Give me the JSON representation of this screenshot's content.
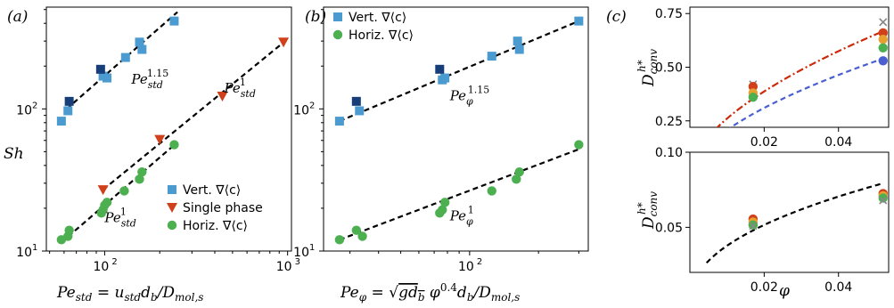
{
  "colors": {
    "vert": "#4b9bd1",
    "vert_dark": "#183e7a",
    "horiz": "#4caf50",
    "single": "#d0401a",
    "fit_red": "#cc2a0a",
    "fit_blue": "#4a5fd0",
    "fit_black": "#000000"
  },
  "chart_data": [
    {
      "id": "a",
      "type": "scatter",
      "panel_label": "(a)",
      "xlabel": "Pe_std = u_std d_b / D_mol,s",
      "ylabel": "Sh",
      "xscale": "log",
      "yscale": "log",
      "xlim": [
        48,
        1050
      ],
      "ylim": [
        10,
        520
      ],
      "xticks": [
        {
          "v": 100,
          "b": "10",
          "e": "2"
        },
        {
          "v": 1000,
          "b": "10",
          "e": "3"
        }
      ],
      "yticks": [
        {
          "v": 10,
          "b": "10",
          "e": "1"
        },
        {
          "v": 100,
          "b": "10",
          "e": "2"
        }
      ],
      "legend": {
        "position": "lower-right",
        "entries": [
          {
            "label": "Vert. ∇⟨c⟩",
            "marker": "square",
            "color": "vert"
          },
          {
            "label": "Single phase",
            "marker": "triangle-down",
            "color": "single"
          },
          {
            "label": "Horiz. ∇⟨c⟩",
            "marker": "circle",
            "color": "horiz"
          }
        ]
      },
      "series": [
        {
          "name": "Vert. ∇⟨c⟩",
          "marker": "square",
          "color": "vert",
          "x": [
            58,
            63,
            98,
            103,
            130,
            155,
            160,
            240
          ],
          "y": [
            82,
            97,
            170,
            165,
            230,
            295,
            262,
            415
          ]
        },
        {
          "name": "",
          "marker": "square",
          "color": "vert_dark",
          "x": [
            64,
            95
          ],
          "y": [
            113,
            190
          ]
        },
        {
          "name": "Single phase",
          "marker": "triangle-down",
          "color": "single",
          "x": [
            98,
            200,
            440,
            950
          ],
          "y": [
            27,
            61,
            123,
            295
          ]
        },
        {
          "name": "Horiz. ∇⟨c⟩",
          "marker": "circle",
          "color": "horiz",
          "x": [
            58,
            63,
            64,
            96,
            98,
            100,
            103,
            128,
            155,
            160,
            240
          ],
          "y": [
            12,
            12.7,
            14,
            18.5,
            19.5,
            21,
            22,
            26.5,
            32,
            36,
            56
          ]
        }
      ],
      "fits": [
        {
          "x": [
            62,
            250
          ],
          "y": [
            100,
            480
          ],
          "style": "dashed",
          "color": "fit_black"
        },
        {
          "x": [
            98,
            970
          ],
          "y": [
            27,
            300
          ],
          "style": "dashed",
          "color": "fit_black"
        },
        {
          "x": [
            58,
            245
          ],
          "y": [
            11.5,
            57
          ],
          "style": "dashed",
          "color": "fit_black"
        }
      ],
      "annotations": [
        {
          "base": "Pe",
          "sub": "std",
          "sup": "1.15",
          "x": 140,
          "y": 150
        },
        {
          "base": "Pe",
          "sub": "std",
          "sup": "1",
          "x": 450,
          "y": 130
        },
        {
          "base": "Pe",
          "sub": "std",
          "sup": "1",
          "x": 100,
          "y": 16
        }
      ]
    },
    {
      "id": "b",
      "type": "scatter",
      "panel_label": "(b)",
      "xlabel": "Pe_φ = √(g d_b) φ^0.4 d_b / D_mol,s",
      "ylabel": "",
      "xscale": "log",
      "yscale": "log",
      "xlim": [
        23,
        330
      ],
      "ylim": [
        10,
        520
      ],
      "xticks": [
        {
          "v": 100,
          "b": "10",
          "e": "2"
        }
      ],
      "yticks": [
        {
          "v": 10,
          "b": "10",
          "e": "1"
        },
        {
          "v": 100,
          "b": "10",
          "e": "2"
        }
      ],
      "legend": {
        "position": "upper-left",
        "entries": [
          {
            "label": "Vert. ∇⟨c⟩",
            "marker": "square",
            "color": "vert"
          },
          {
            "label": "Horiz. ∇⟨c⟩",
            "marker": "circle",
            "color": "horiz"
          }
        ]
      },
      "series": [
        {
          "name": "Vert. ∇⟨c⟩",
          "marker": "square",
          "color": "vert",
          "x": [
            27,
            33,
            76,
            78,
            125,
            162,
            165,
            300
          ],
          "y": [
            82,
            97,
            160,
            165,
            235,
            300,
            262,
            415
          ]
        },
        {
          "name": "",
          "marker": "square",
          "color": "vert_dark",
          "x": [
            32,
            74
          ],
          "y": [
            113,
            190
          ]
        },
        {
          "name": "Horiz. ∇⟨c⟩",
          "marker": "circle",
          "color": "horiz",
          "x": [
            27,
            32,
            34,
            74,
            76,
            78,
            125,
            160,
            165,
            300
          ],
          "y": [
            12,
            14,
            12.7,
            18.5,
            19.5,
            22,
            26.5,
            32,
            36,
            56
          ]
        }
      ],
      "fits": [
        {
          "x": [
            27,
            300
          ],
          "y": [
            82,
            415
          ],
          "style": "dashed",
          "color": "fit_black"
        },
        {
          "x": [
            27,
            300
          ],
          "y": [
            12,
            52
          ],
          "style": "dashed",
          "color": "fit_black"
        }
      ],
      "annotations": [
        {
          "base": "Pe",
          "sub": "φ",
          "sup": "1.15",
          "x": 82,
          "y": 115
        },
        {
          "base": "Pe",
          "sub": "φ",
          "sup": "1",
          "x": 82,
          "y": 16.5
        }
      ]
    },
    {
      "id": "c_top",
      "type": "scatter",
      "panel_label": "(c)",
      "xlabel": "",
      "ylabel": "D_conv^h*",
      "xscale": "linear",
      "yscale": "linear",
      "xlim": [
        0.0,
        0.0535
      ],
      "ylim": [
        0.22,
        0.78
      ],
      "xticks": [
        {
          "v": 0.02,
          "t": "0.02"
        },
        {
          "v": 0.04,
          "t": "0.04"
        }
      ],
      "yticks": [
        {
          "v": 0.25,
          "t": "0.25"
        },
        {
          "v": 0.5,
          "t": "0.50"
        },
        {
          "v": 0.75,
          "t": "0.75"
        }
      ],
      "series": [
        {
          "marker": "x",
          "color": "#888888",
          "x": [
            0.017,
            0.052
          ],
          "y": [
            0.42,
            0.71
          ]
        },
        {
          "marker": "circle",
          "color": "#d0401a",
          "x": [
            0.017,
            0.052
          ],
          "y": [
            0.41,
            0.66
          ]
        },
        {
          "marker": "circle",
          "color": "#e8a030",
          "x": [
            0.017,
            0.052
          ],
          "y": [
            0.38,
            0.63
          ]
        },
        {
          "marker": "circle",
          "color": "#4caf50",
          "x": [
            0.017,
            0.052
          ],
          "y": [
            0.36,
            0.59
          ]
        },
        {
          "marker": "circle",
          "color": "#4a5fd0",
          "x": [
            0.052
          ],
          "y": [
            0.53
          ]
        }
      ],
      "fits": [
        {
          "fn": "power",
          "a": 3.6,
          "b": 0.57,
          "x0": 0.0043,
          "x1": 0.052,
          "style": "dashdot",
          "color": "fit_red"
        },
        {
          "fn": "power",
          "a": 3.0,
          "b": 0.58,
          "x0": 0.006,
          "x1": 0.052,
          "style": "dashed",
          "color": "fit_blue"
        }
      ]
    },
    {
      "id": "c_bottom",
      "type": "scatter",
      "panel_label": "",
      "xlabel": "φ",
      "ylabel": "D_conv^h*",
      "xscale": "linear",
      "yscale": "linear",
      "xlim": [
        0.0,
        0.0535
      ],
      "ylim": [
        0.02,
        0.1
      ],
      "xticks": [
        {
          "v": 0.02,
          "t": "0.02"
        },
        {
          "v": 0.04,
          "t": "0.04"
        }
      ],
      "yticks": [
        {
          "v": 0.05,
          "t": "0.05"
        },
        {
          "v": 0.1,
          "t": "0.10"
        }
      ],
      "series": [
        {
          "marker": "circle",
          "color": "#d0401a",
          "x": [
            0.017,
            0.052
          ],
          "y": [
            0.0555,
            0.0725
          ]
        },
        {
          "marker": "circle",
          "color": "#e8a030",
          "x": [
            0.017,
            0.052
          ],
          "y": [
            0.0535,
            0.071
          ]
        },
        {
          "marker": "circle",
          "color": "#4caf50",
          "x": [
            0.017,
            0.052
          ],
          "y": [
            0.0515,
            0.0695
          ]
        },
        {
          "marker": "x",
          "color": "#888888",
          "x": [
            0.017,
            0.052
          ],
          "y": [
            0.051,
            0.068
          ]
        }
      ],
      "fits": [
        {
          "fn": "power",
          "a": 0.3,
          "b": 0.45,
          "x0": 0.0045,
          "x1": 0.052,
          "style": "dashed",
          "color": "fit_black"
        }
      ]
    }
  ]
}
